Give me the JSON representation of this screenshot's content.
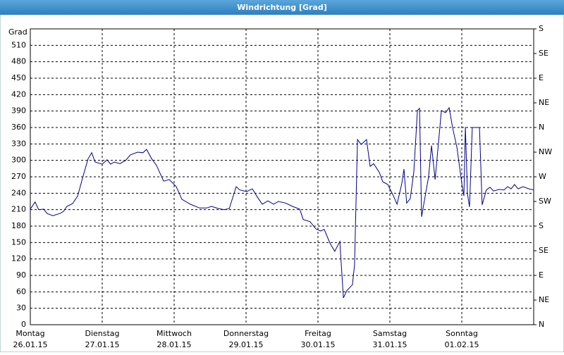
{
  "chart_data": {
    "type": "line",
    "title": "Windrichtung [Grad]",
    "y_label": "Grad",
    "xlim": [
      0,
      168
    ],
    "xticks": [
      {
        "value": 0,
        "label": "Montag"
      },
      {
        "value": 24,
        "label": "Dienstag"
      },
      {
        "value": 48,
        "label": "Mittwoch"
      },
      {
        "value": 72,
        "label": "Donnerstag"
      },
      {
        "value": 96,
        "label": "Freitag"
      },
      {
        "value": 120,
        "label": "Samstag"
      },
      {
        "value": 144,
        "label": "Sonntag"
      }
    ],
    "xtick_dates": [
      "26.01.15",
      "27.01.15",
      "28.01.15",
      "29.01.15",
      "30.01.15",
      "31.01.15",
      "01.02.15"
    ],
    "ylim": [
      0,
      540
    ],
    "yticks": [
      0,
      30,
      60,
      90,
      120,
      150,
      180,
      210,
      240,
      270,
      300,
      330,
      360,
      390,
      420,
      450,
      480,
      510
    ],
    "y2lim": [
      0,
      540
    ],
    "y2ticks": [
      {
        "value": 0,
        "label": "N"
      },
      {
        "value": 45,
        "label": "NE"
      },
      {
        "value": 90,
        "label": "E"
      },
      {
        "value": 135,
        "label": "SE"
      },
      {
        "value": 180,
        "label": "S"
      },
      {
        "value": 225,
        "label": "SW"
      },
      {
        "value": 270,
        "label": "W"
      },
      {
        "value": 315,
        "label": "NW"
      },
      {
        "value": 360,
        "label": "N"
      },
      {
        "value": 405,
        "label": "NE"
      },
      {
        "value": 450,
        "label": "E"
      },
      {
        "value": 495,
        "label": "SE"
      },
      {
        "value": 540,
        "label": "S"
      }
    ],
    "grid": true,
    "x": [
      0,
      1.6,
      2.8,
      4.5,
      5.6,
      7.5,
      9.9,
      11.1,
      12.2,
      14.1,
      15.8,
      17.6,
      19.3,
      20.5,
      21.6,
      24.0,
      25.6,
      26.8,
      28.0,
      29.9,
      31.8,
      33.4,
      35.8,
      37.6,
      38.8,
      40.5,
      42.1,
      44.5,
      46.4,
      48.7,
      50.6,
      53.4,
      56.5,
      58.8,
      60.5,
      62.8,
      64.7,
      66.4,
      68.7,
      69.9,
      72.2,
      74.1,
      75.8,
      77.4,
      79.3,
      81.2,
      82.8,
      85.2,
      87.5,
      89.9,
      91.1,
      93.4,
      95.3,
      96.9,
      98.1,
      100.0,
      101.6,
      103.3,
      104.5,
      105.6,
      107.5,
      108.2,
      109.2,
      110.4,
      112.2,
      113.4,
      114.6,
      116.5,
      117.6,
      119.3,
      121.2,
      122.4,
      124.0,
      124.7,
      125.6,
      126.8,
      128.0,
      129.2,
      129.9,
      130.6,
      132.2,
      132.9,
      133.9,
      135.1,
      137.2,
      138.6,
      139.8,
      140.9,
      142.4,
      144.0,
      144.7,
      145.2,
      145.9,
      146.6,
      147.5,
      149.9,
      150.8,
      152.2,
      153.4,
      154.6,
      156.5,
      158.1,
      159.3,
      160.5,
      161.6,
      162.8,
      164.5,
      166.4,
      168.0
    ],
    "series": [
      {
        "color": "#00008b",
        "values": [
          211,
          224,
          210,
          211,
          203,
          199,
          203,
          207,
          216,
          221,
          235,
          271,
          303,
          314,
          297,
          293,
          301,
          293,
          297,
          294,
          300,
          310,
          315,
          314,
          320,
          303,
          291,
          262,
          265,
          252,
          229,
          220,
          213,
          213,
          216,
          212,
          210,
          212,
          252,
          246,
          243,
          248,
          233,
          220,
          226,
          220,
          225,
          222,
          216,
          211,
          192,
          188,
          175,
          171,
          174,
          149,
          134,
          152,
          49,
          62,
          73,
          109,
          338,
          329,
          338,
          289,
          294,
          278,
          261,
          256,
          235,
          220,
          258,
          284,
          222,
          230,
          279,
          391,
          395,
          197,
          248,
          269,
          327,
          265,
          391,
          387,
          396,
          361,
          323,
          258,
          235,
          361,
          239,
          215,
          360,
          360,
          219,
          246,
          251,
          244,
          247,
          246,
          252,
          248,
          256,
          248,
          252,
          248,
          246
        ]
      }
    ]
  }
}
